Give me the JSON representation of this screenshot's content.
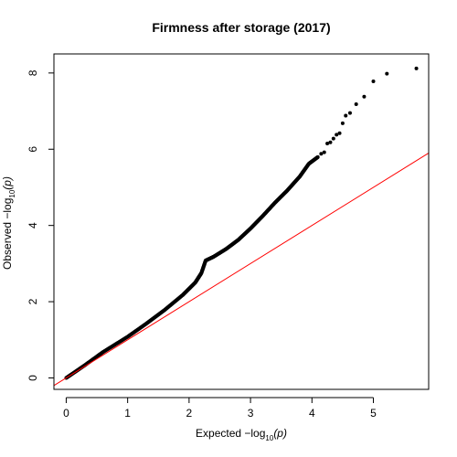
{
  "chart_data": {
    "type": "scatter",
    "title": "Firmness after storage (2017)",
    "xlabel": {
      "prefix": "Expected  −log",
      "sub": "10",
      "suffix": "(p)"
    },
    "ylabel": {
      "prefix": "Observed  −log",
      "sub": "10",
      "suffix": "(p)"
    },
    "xlim": [
      -0.2,
      5.9
    ],
    "ylim": [
      -0.3,
      8.5
    ],
    "xticks": [
      0,
      1,
      2,
      3,
      4,
      5
    ],
    "yticks": [
      0,
      2,
      4,
      6,
      8
    ],
    "grid": false,
    "legend": "none",
    "reference_line": {
      "slope": 1,
      "intercept": 0,
      "color": "#ff0000"
    },
    "point_color": "#000000",
    "curve": [
      [
        0.0,
        0.0
      ],
      [
        0.3,
        0.33
      ],
      [
        0.6,
        0.68
      ],
      [
        1.0,
        1.08
      ],
      [
        1.3,
        1.42
      ],
      [
        1.6,
        1.78
      ],
      [
        1.9,
        2.18
      ],
      [
        2.1,
        2.5
      ],
      [
        2.2,
        2.75
      ],
      [
        2.27,
        3.08
      ],
      [
        2.4,
        3.18
      ],
      [
        2.6,
        3.38
      ],
      [
        2.8,
        3.62
      ],
      [
        3.0,
        3.92
      ],
      [
        3.2,
        4.25
      ],
      [
        3.4,
        4.6
      ],
      [
        3.6,
        4.92
      ],
      [
        3.8,
        5.28
      ],
      [
        3.95,
        5.62
      ],
      [
        4.1,
        5.8
      ]
    ],
    "tail_points": [
      [
        4.15,
        5.88
      ],
      [
        4.2,
        5.92
      ],
      [
        4.25,
        6.15
      ],
      [
        4.3,
        6.18
      ],
      [
        4.35,
        6.28
      ],
      [
        4.4,
        6.38
      ],
      [
        4.45,
        6.42
      ],
      [
        4.5,
        6.68
      ],
      [
        4.55,
        6.88
      ],
      [
        4.62,
        6.95
      ],
      [
        4.72,
        7.18
      ],
      [
        4.85,
        7.38
      ],
      [
        5.0,
        7.78
      ],
      [
        5.22,
        7.98
      ],
      [
        5.7,
        8.12
      ]
    ]
  }
}
